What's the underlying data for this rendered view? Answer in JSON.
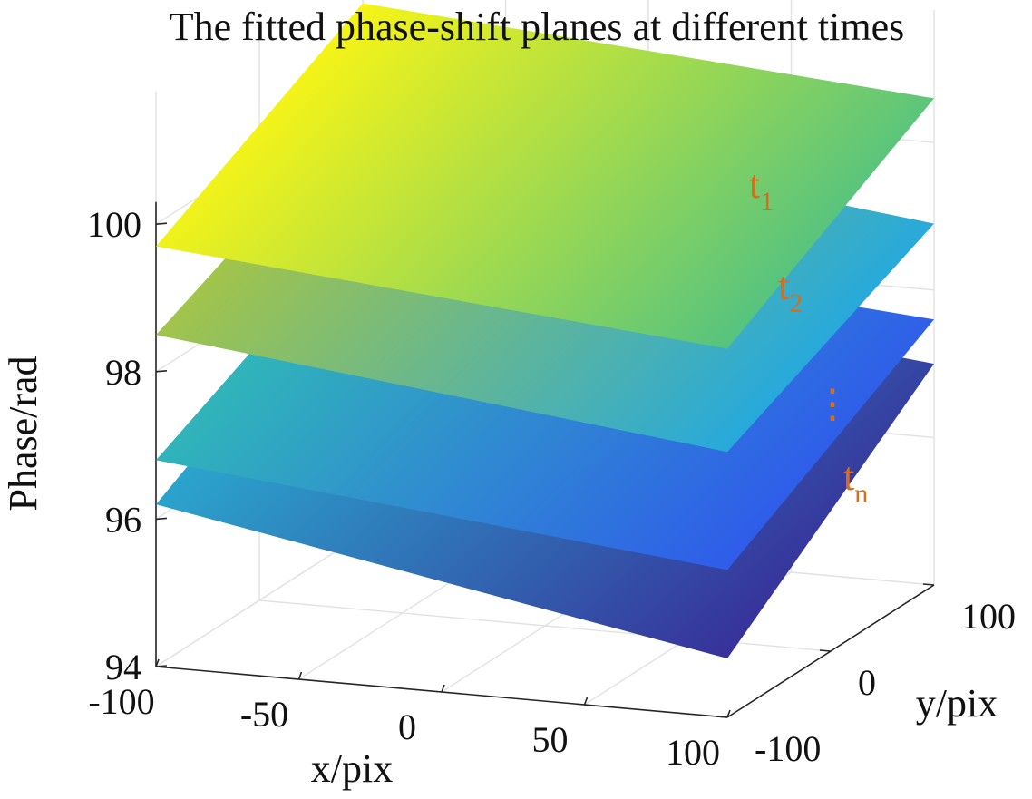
{
  "chart_data": {
    "type": "surface",
    "title": "The fitted phase-shift planes at different times",
    "xlabel": "x/pix",
    "ylabel": "y/pix",
    "zlabel": "Phase/rad",
    "xlim": [
      -100,
      100
    ],
    "ylim": [
      -100,
      100
    ],
    "zlim": [
      94,
      100
    ],
    "x_ticks": [
      "-100",
      "-50",
      "0",
      "50",
      "100"
    ],
    "y_ticks": [
      "-100",
      "0",
      "100"
    ],
    "z_ticks": [
      "94",
      "96",
      "98",
      "100"
    ],
    "colormap": "parula",
    "grid": true,
    "series": [
      {
        "name": "t1",
        "corners": {
          "x_min_y_min": 99.7,
          "x_max_y_min": 99.0,
          "x_min_y_max": 101.2,
          "x_max_y_max": 100.6
        }
      },
      {
        "name": "t2",
        "corners": {
          "x_min_y_min": 98.5,
          "x_max_y_min": 97.6,
          "x_min_y_max": 99.8,
          "x_max_y_max": 98.9
        }
      },
      {
        "name": "",
        "corners": {
          "x_min_y_min": 96.8,
          "x_max_y_min": 96.0,
          "x_min_y_max": 98.2,
          "x_max_y_max": 97.6
        }
      },
      {
        "name": "tn",
        "corners": {
          "x_min_y_min": 96.2,
          "x_max_y_min": 94.8,
          "x_min_y_max": 97.8,
          "x_max_y_max": 97.0
        }
      }
    ],
    "annotations": [
      {
        "base": "t",
        "sub": "1",
        "color": "#d96d1c"
      },
      {
        "base": "t",
        "sub": "2",
        "color": "#d96d1c"
      },
      {
        "base": "⋮",
        "sub": "",
        "color": "#d96d1c"
      },
      {
        "base": "t",
        "sub": "n",
        "color": "#d96d1c"
      }
    ]
  }
}
